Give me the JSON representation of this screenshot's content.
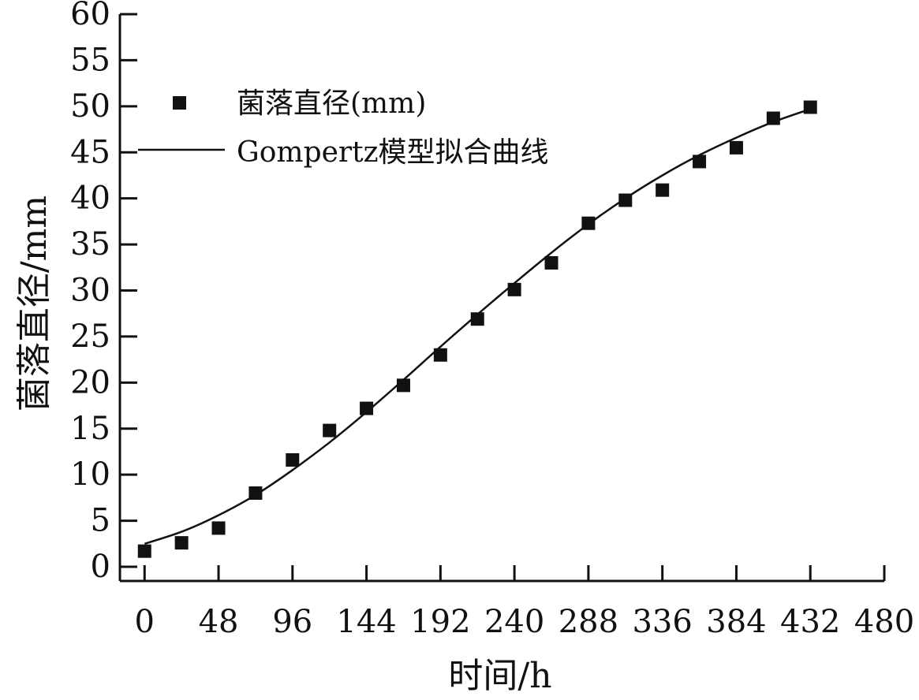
{
  "chart_data": {
    "type": "scatter",
    "xlabel": "时间/h",
    "ylabel": "菌落直径/mm",
    "xlim": [
      -16,
      480
    ],
    "ylim": [
      0,
      60
    ],
    "x_ticks": [
      "0",
      "48",
      "96",
      "144",
      "192",
      "240",
      "288",
      "336",
      "384",
      "432",
      "480"
    ],
    "y_ticks": [
      "0",
      "5",
      "10",
      "15",
      "20",
      "25",
      "30",
      "35",
      "40",
      "45",
      "50",
      "55",
      "60"
    ],
    "x_tick_values": [
      0,
      48,
      96,
      144,
      192,
      240,
      288,
      336,
      384,
      432,
      480
    ],
    "y_tick_values": [
      0,
      5,
      10,
      15,
      20,
      25,
      30,
      35,
      40,
      45,
      50,
      55,
      60
    ],
    "grid": false,
    "legend_position": "top-left",
    "series": [
      {
        "name": "菌落直径(mm)",
        "kind": "markers",
        "marker": "square",
        "color": "#111111",
        "x": [
          0,
          24,
          48,
          72,
          96,
          120,
          144,
          168,
          192,
          216,
          240,
          264,
          288,
          312,
          336,
          360,
          384,
          408,
          432
        ],
        "y": [
          1.7,
          2.6,
          4.2,
          8.0,
          11.6,
          14.8,
          17.2,
          19.7,
          23.0,
          26.9,
          30.1,
          33.0,
          37.3,
          39.8,
          40.9,
          44.0,
          45.5,
          48.7,
          49.9
        ]
      },
      {
        "name": "Gompertz模型拟合曲线",
        "kind": "line",
        "color": "#111111",
        "x": [
          0,
          24,
          48,
          72,
          96,
          120,
          144,
          168,
          192,
          216,
          240,
          264,
          288,
          312,
          336,
          360,
          384,
          408,
          432
        ],
        "y": [
          2.5,
          3.8,
          5.6,
          7.8,
          10.5,
          13.5,
          16.8,
          20.3,
          23.9,
          27.4,
          30.8,
          34.1,
          37.2,
          40.0,
          42.5,
          44.7,
          46.6,
          48.3,
          49.7
        ]
      }
    ]
  }
}
